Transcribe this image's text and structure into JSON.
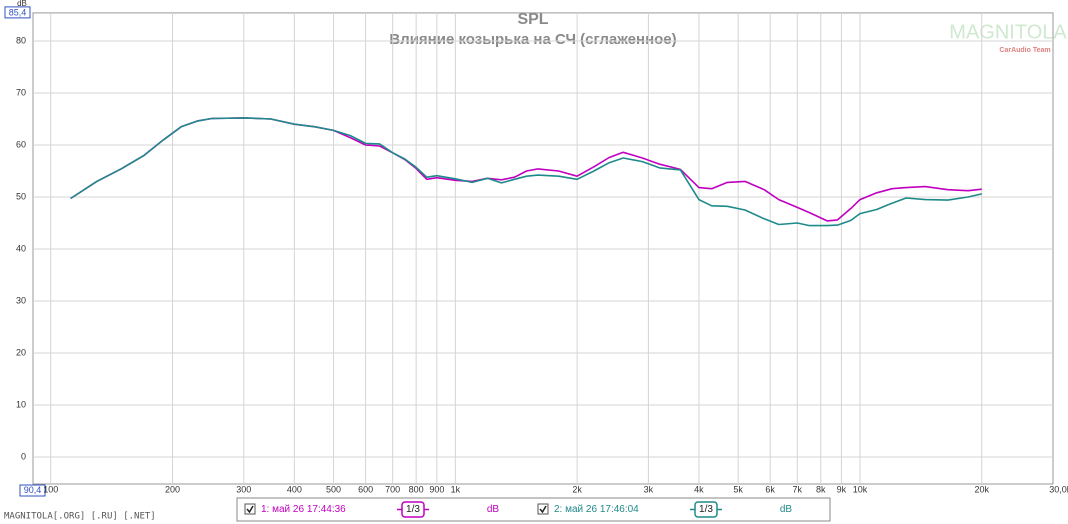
{
  "chart_data": {
    "type": "line",
    "title": "SPL",
    "subtitle": "Влияние козырька на СЧ (сглаженное)",
    "y_label": "dB",
    "log_x": true,
    "grid": true,
    "xlim": [
      90.4,
      30000
    ],
    "ylim": [
      -5.2,
      85.4
    ],
    "xticks": [
      {
        "value": 90.4,
        "label": "90,4"
      },
      100,
      200,
      300,
      400,
      500,
      600,
      700,
      800,
      900,
      {
        "value": 1000,
        "label": "1k"
      },
      {
        "value": 2000,
        "label": "2k"
      },
      {
        "value": 3000,
        "label": "3k"
      },
      {
        "value": 4000,
        "label": "4k"
      },
      {
        "value": 5000,
        "label": "5k"
      },
      {
        "value": 6000,
        "label": "6k"
      },
      {
        "value": 7000,
        "label": "7k"
      },
      {
        "value": 8000,
        "label": "8k"
      },
      {
        "value": 9000,
        "label": "9k"
      },
      {
        "value": 10000,
        "label": "10k"
      },
      {
        "value": 20000,
        "label": "20k"
      },
      {
        "value": 30000,
        "label": "30,0k Hz"
      }
    ],
    "yticks": [
      0,
      10,
      20,
      30,
      40,
      50,
      60,
      70,
      80,
      {
        "value": 85.4,
        "label": "85,4"
      }
    ],
    "x": [
      112,
      130,
      150,
      170,
      190,
      210,
      230,
      250,
      300,
      350,
      400,
      450,
      500,
      550,
      600,
      650,
      700,
      750,
      800,
      850,
      900,
      1000,
      1100,
      1200,
      1300,
      1400,
      1500,
      1600,
      1800,
      2000,
      2200,
      2400,
      2600,
      2900,
      3200,
      3600,
      4000,
      4300,
      4700,
      5200,
      5800,
      6300,
      7000,
      7500,
      8300,
      8800,
      9500,
      10000,
      11000,
      12000,
      13000,
      14500,
      16500,
      18500,
      20000
    ],
    "series": [
      {
        "name": "1: май 26 17:44:36",
        "color": "#c000c0",
        "smoothing": "1/3",
        "unit": "dB",
        "values": [
          49.7,
          53,
          55.5,
          58,
          61,
          63.5,
          64.6,
          65.1,
          65.2,
          65,
          64,
          63.5,
          62.8,
          61.4,
          60,
          59.8,
          58.5,
          57.2,
          55.5,
          53.4,
          53.7,
          53.2,
          53,
          53.6,
          53.3,
          53.8,
          55,
          55.4,
          55,
          54,
          55.8,
          57.6,
          58.6,
          57.5,
          56.3,
          55.3,
          51.8,
          51.6,
          52.8,
          53,
          51.4,
          49.5,
          48,
          47,
          45.4,
          45.6,
          47.8,
          49.5,
          50.8,
          51.6,
          51.8,
          52,
          51.4,
          51.2,
          51.5
        ]
      },
      {
        "name": "2: май 26 17:46:04",
        "color": "#1f8a8a",
        "smoothing": "1/3",
        "unit": "dB",
        "values": [
          49.7,
          53,
          55.5,
          58,
          61,
          63.5,
          64.6,
          65.1,
          65.2,
          65,
          64,
          63.5,
          62.8,
          61.8,
          60.3,
          60.2,
          58.5,
          57.3,
          55.7,
          53.8,
          54.1,
          53.5,
          52.8,
          53.6,
          52.7,
          53.4,
          54,
          54.2,
          54,
          53.4,
          55,
          56.6,
          57.5,
          56.8,
          55.6,
          55.2,
          49.5,
          48.3,
          48.2,
          47.5,
          45.8,
          44.7,
          45,
          44.5,
          44.5,
          44.6,
          45.5,
          46.8,
          47.6,
          48.8,
          49.8,
          49.5,
          49.4,
          50,
          50.6
        ]
      }
    ],
    "watermark": "MAGNITOLA[.ORG] [.RU] [.NET]",
    "logo": "MAGNITOLA",
    "logo_subtitle": "CarAudio Team"
  }
}
